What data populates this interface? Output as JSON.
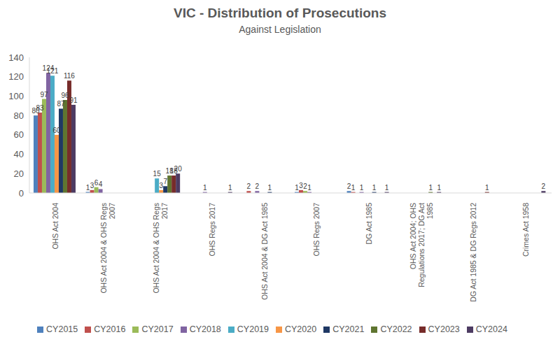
{
  "chart_data": {
    "type": "bar",
    "title": "VIC - Distribution of Prosecutions",
    "subtitle": "Against Legislation",
    "categories": [
      "OHS Act 2004",
      "OHS Act 2004 & OHS Regs 2007",
      "OHS Act 2004 & OHS Regs 2017",
      "OHS Regs 2017",
      "OHS Act 2004 & DG Act 1985",
      "OHS Regs 2007",
      "DG Act 1985",
      "OHS Act 2004; OHS Regulations 2017; DG Act 1985",
      "DG Act 1985 & DG Regs 2012",
      "Crimes Act 1958"
    ],
    "series": [
      {
        "name": "CY2015",
        "color": "#4f81bd",
        "values": [
          80,
          1,
          0,
          0,
          0,
          1,
          2,
          0,
          null,
          null
        ]
      },
      {
        "name": "CY2016",
        "color": "#c0504d",
        "values": [
          83,
          3,
          0,
          0,
          2,
          3,
          1,
          0,
          null,
          null
        ]
      },
      {
        "name": "CY2017",
        "color": "#9bbb59",
        "values": [
          97,
          6,
          0,
          0,
          0,
          2,
          0,
          0,
          null,
          null
        ]
      },
      {
        "name": "CY2018",
        "color": "#8064a2",
        "values": [
          124,
          4,
          0,
          1,
          2,
          1,
          1,
          0,
          null,
          null
        ]
      },
      {
        "name": "CY2019",
        "color": "#4bacc6",
        "values": [
          121,
          0,
          15,
          0,
          0,
          0,
          0,
          0,
          null,
          null
        ]
      },
      {
        "name": "CY2020",
        "color": "#f79646",
        "values": [
          60,
          0,
          3,
          0,
          0,
          0,
          0,
          0,
          null,
          null
        ]
      },
      {
        "name": "CY2021",
        "color": "#1f3864",
        "values": [
          87,
          0,
          7,
          0,
          1,
          0,
          1,
          0,
          null,
          null
        ]
      },
      {
        "name": "CY2022",
        "color": "#5f7530",
        "values": [
          96,
          0,
          18,
          0,
          0,
          0,
          0,
          1,
          null,
          null
        ]
      },
      {
        "name": "CY2023",
        "color": "#772c2a",
        "values": [
          116,
          0,
          18,
          0,
          0,
          0,
          0,
          0,
          1,
          null
        ]
      },
      {
        "name": "CY2024",
        "color": "#4d3b62",
        "values": [
          91,
          0,
          20,
          1,
          0,
          0,
          1,
          1,
          null,
          2
        ]
      }
    ],
    "ylim": [
      0,
      140
    ],
    "yticks": [
      0,
      20,
      40,
      60,
      80,
      100,
      120,
      140
    ],
    "grid": false,
    "data_labels": true,
    "legend": "bottom"
  }
}
